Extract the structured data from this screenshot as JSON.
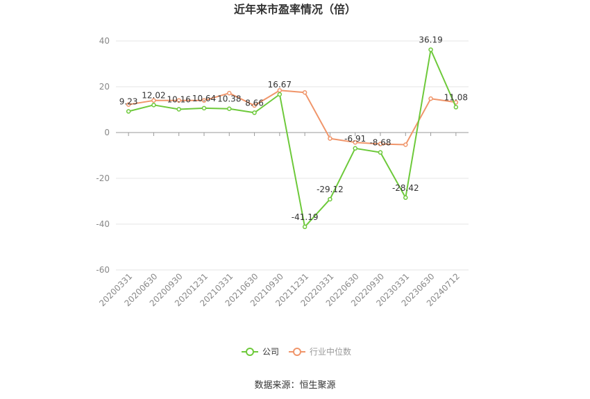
{
  "chart_data": {
    "type": "line",
    "title": "近年来市盈率情况（倍）",
    "categories": [
      "20200331",
      "20200630",
      "20200930",
      "20201231",
      "20210331",
      "20210630",
      "20210930",
      "20211231",
      "20220331",
      "20220630",
      "20220930",
      "20230331",
      "20230630",
      "20240712"
    ],
    "ylim": [
      -60,
      40
    ],
    "yticks": [
      40,
      20,
      0,
      -20,
      -40,
      -60
    ],
    "grid": true,
    "legend_position": "bottom-center",
    "series": [
      {
        "name": "公司",
        "color": "#6dc93a",
        "values": [
          9.23,
          12.02,
          10.16,
          10.64,
          10.38,
          8.66,
          16.67,
          -41.19,
          -29.12,
          -6.91,
          -8.68,
          -28.42,
          36.19,
          11.08
        ],
        "labels": [
          "9.23",
          "12.02",
          "10.16",
          "10.64",
          "10.38",
          "8.66",
          "16.67",
          "-41.19",
          "-29.12",
          "-6.91",
          "-8.68",
          "-28.42",
          "36.19",
          "11.08"
        ]
      },
      {
        "name": "行业中位数",
        "color": "#f0956a",
        "values": [
          12.2,
          14.0,
          14.0,
          14.0,
          17.2,
          11.8,
          18.4,
          17.5,
          -2.6,
          -4.3,
          -5.0,
          -5.3,
          14.8,
          13.2
        ]
      }
    ]
  },
  "source_text": "数据来源：恒生聚源"
}
